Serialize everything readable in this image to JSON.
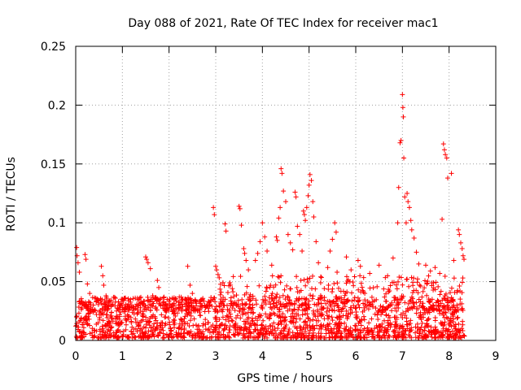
{
  "chart_data": {
    "type": "scatter",
    "title": "Day 088 of 2021, Rate Of TEC Index for receiver mac1",
    "xlabel": "GPS time / hours",
    "ylabel": "ROTI / TECUs",
    "xlim": [
      0,
      9
    ],
    "ylim": [
      0,
      0.25
    ],
    "x_ticks": [
      "0",
      "1",
      "2",
      "3",
      "4",
      "5",
      "6",
      "7",
      "8",
      "9"
    ],
    "y_ticks": [
      "0",
      "0.05",
      "0.1",
      "0.15",
      "0.2",
      "0.25"
    ],
    "grid": true,
    "marker": "+",
    "series": [
      {
        "color": "#ff0000",
        "points": [
          [
            0.02,
            0.079
          ],
          [
            0.03,
            0.072
          ],
          [
            0.05,
            0.066
          ],
          [
            0.08,
            0.058
          ],
          [
            0.2,
            0.073
          ],
          [
            0.22,
            0.069
          ],
          [
            0.25,
            0.048
          ],
          [
            0.3,
            0.04
          ],
          [
            0.55,
            0.063
          ],
          [
            0.58,
            0.055
          ],
          [
            0.6,
            0.047
          ],
          [
            0.65,
            0.038
          ],
          [
            1.5,
            0.071
          ],
          [
            1.52,
            0.069
          ],
          [
            1.55,
            0.066
          ],
          [
            1.6,
            0.061
          ],
          [
            1.65,
            0.038
          ],
          [
            1.75,
            0.051
          ],
          [
            1.78,
            0.045
          ],
          [
            2.4,
            0.063
          ],
          [
            2.45,
            0.047
          ],
          [
            2.5,
            0.04
          ],
          [
            2.95,
            0.113
          ],
          [
            2.97,
            0.107
          ],
          [
            3.0,
            0.063
          ],
          [
            3.02,
            0.06
          ],
          [
            3.05,
            0.056
          ],
          [
            3.2,
            0.099
          ],
          [
            3.22,
            0.093
          ],
          [
            3.5,
            0.114
          ],
          [
            3.52,
            0.112
          ],
          [
            3.55,
            0.098
          ],
          [
            3.6,
            0.078
          ],
          [
            3.62,
            0.074
          ],
          [
            3.65,
            0.068
          ],
          [
            3.7,
            0.06
          ],
          [
            3.85,
            0.068
          ],
          [
            3.9,
            0.074
          ],
          [
            3.95,
            0.084
          ],
          [
            4.0,
            0.1
          ],
          [
            4.05,
            0.088
          ],
          [
            4.1,
            0.076
          ],
          [
            4.2,
            0.064
          ],
          [
            4.3,
            0.088
          ],
          [
            4.32,
            0.085
          ],
          [
            4.35,
            0.104
          ],
          [
            4.38,
            0.113
          ],
          [
            4.4,
            0.146
          ],
          [
            4.42,
            0.142
          ],
          [
            4.45,
            0.127
          ],
          [
            4.5,
            0.118
          ],
          [
            4.55,
            0.09
          ],
          [
            4.6,
            0.083
          ],
          [
            4.65,
            0.077
          ],
          [
            4.7,
            0.126
          ],
          [
            4.72,
            0.122
          ],
          [
            4.75,
            0.097
          ],
          [
            4.8,
            0.09
          ],
          [
            4.85,
            0.076
          ],
          [
            4.88,
            0.11
          ],
          [
            4.9,
            0.107
          ],
          [
            4.92,
            0.102
          ],
          [
            4.95,
            0.113
          ],
          [
            4.98,
            0.123
          ],
          [
            5.0,
            0.132
          ],
          [
            5.02,
            0.141
          ],
          [
            5.05,
            0.136
          ],
          [
            5.08,
            0.118
          ],
          [
            5.1,
            0.105
          ],
          [
            5.15,
            0.084
          ],
          [
            5.2,
            0.066
          ],
          [
            5.25,
            0.054
          ],
          [
            5.4,
            0.062
          ],
          [
            5.45,
            0.076
          ],
          [
            5.5,
            0.086
          ],
          [
            5.55,
            0.1
          ],
          [
            5.58,
            0.092
          ],
          [
            5.6,
            0.058
          ],
          [
            5.8,
            0.071
          ],
          [
            5.9,
            0.06
          ],
          [
            6.05,
            0.068
          ],
          [
            6.1,
            0.063
          ],
          [
            6.3,
            0.057
          ],
          [
            6.5,
            0.064
          ],
          [
            6.8,
            0.07
          ],
          [
            6.9,
            0.1
          ],
          [
            6.92,
            0.13
          ],
          [
            6.95,
            0.168
          ],
          [
            6.97,
            0.17
          ],
          [
            7.0,
            0.209
          ],
          [
            7.01,
            0.198
          ],
          [
            7.02,
            0.19
          ],
          [
            7.03,
            0.155
          ],
          [
            7.05,
            0.122
          ],
          [
            7.08,
            0.1
          ],
          [
            7.1,
            0.125
          ],
          [
            7.12,
            0.118
          ],
          [
            7.15,
            0.113
          ],
          [
            7.18,
            0.102
          ],
          [
            7.2,
            0.094
          ],
          [
            7.25,
            0.087
          ],
          [
            7.3,
            0.075
          ],
          [
            7.35,
            0.065
          ],
          [
            7.5,
            0.064
          ],
          [
            7.6,
            0.059
          ],
          [
            7.7,
            0.062
          ],
          [
            7.8,
            0.057
          ],
          [
            7.85,
            0.103
          ],
          [
            7.88,
            0.167
          ],
          [
            7.9,
            0.162
          ],
          [
            7.92,
            0.158
          ],
          [
            7.95,
            0.155
          ],
          [
            7.97,
            0.138
          ],
          [
            8.05,
            0.142
          ],
          [
            8.1,
            0.068
          ],
          [
            8.2,
            0.094
          ],
          [
            8.22,
            0.09
          ],
          [
            8.25,
            0.083
          ],
          [
            8.28,
            0.078
          ],
          [
            8.3,
            0.072
          ],
          [
            8.32,
            0.069
          ]
        ],
        "dense_band": {
          "x_range": [
            0,
            8.33
          ],
          "y_range": [
            0.002,
            0.03
          ],
          "description": "hundreds of additional + markers filling the low ROTI band"
        }
      }
    ]
  },
  "colors": {
    "marker": "#ff0000",
    "grid": "#a0a0a0",
    "axis": "#000000"
  }
}
